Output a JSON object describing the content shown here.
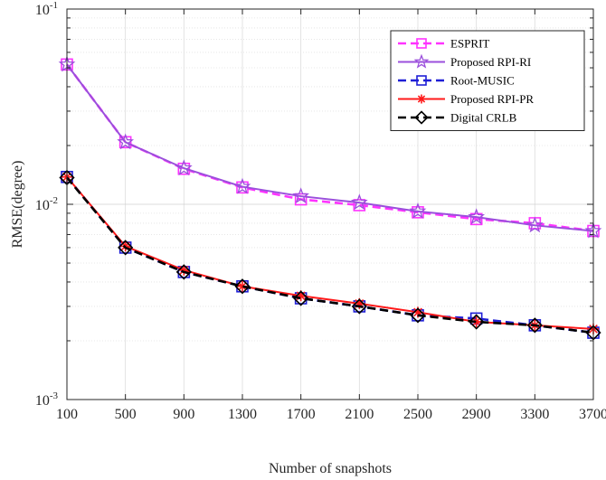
{
  "chart_data": {
    "type": "line",
    "xlabel": "Number of snapshots",
    "ylabel": "RMSE(degree)",
    "x": [
      100,
      500,
      900,
      1300,
      1700,
      2100,
      2500,
      2900,
      3300,
      3700
    ],
    "x_ticks": [
      "100",
      "500",
      "900",
      "1300",
      "1700",
      "2100",
      "2500",
      "2900",
      "3300",
      "3700"
    ],
    "y_scale": "log",
    "ylim": [
      0.001,
      0.1
    ],
    "y_ticks": [
      {
        "value": 0.001,
        "base": "10",
        "exp": "-3"
      },
      {
        "value": 0.01,
        "base": "10",
        "exp": "-2"
      },
      {
        "value": 0.1,
        "base": "10",
        "exp": "-1"
      }
    ],
    "grid": true,
    "legend_position": "top-right",
    "series": [
      {
        "name": "ESPRIT",
        "color": "#ff33ff",
        "dash": "dashed",
        "marker": "square",
        "values": [
          0.052,
          0.0208,
          0.0152,
          0.0122,
          0.0106,
          0.0099,
          0.0091,
          0.0084,
          0.008,
          0.0073
        ]
      },
      {
        "name": "Proposed RPI-RI",
        "color": "#9b4fdc",
        "dash": "solid",
        "marker": "star",
        "values": [
          0.052,
          0.0208,
          0.0153,
          0.0123,
          0.011,
          0.0102,
          0.0092,
          0.0086,
          0.0078,
          0.0073
        ]
      },
      {
        "name": "Root-MUSIC",
        "color": "#1f1fd6",
        "dash": "dashed",
        "marker": "square",
        "values": [
          0.0138,
          0.006,
          0.0045,
          0.0038,
          0.0033,
          0.003,
          0.0027,
          0.0026,
          0.0024,
          0.0022
        ]
      },
      {
        "name": "Proposed RPI-PR",
        "color": "#ff1a1a",
        "dash": "solid",
        "marker": "asterisk",
        "values": [
          0.0138,
          0.0061,
          0.0046,
          0.0038,
          0.0034,
          0.0031,
          0.0028,
          0.0025,
          0.0024,
          0.0023
        ]
      },
      {
        "name": "Digital CRLB",
        "color": "#000000",
        "dash": "dashed",
        "marker": "diamond",
        "values": [
          0.0137,
          0.006,
          0.0045,
          0.0038,
          0.0033,
          0.003,
          0.0027,
          0.0025,
          0.0024,
          0.0022
        ]
      }
    ]
  }
}
